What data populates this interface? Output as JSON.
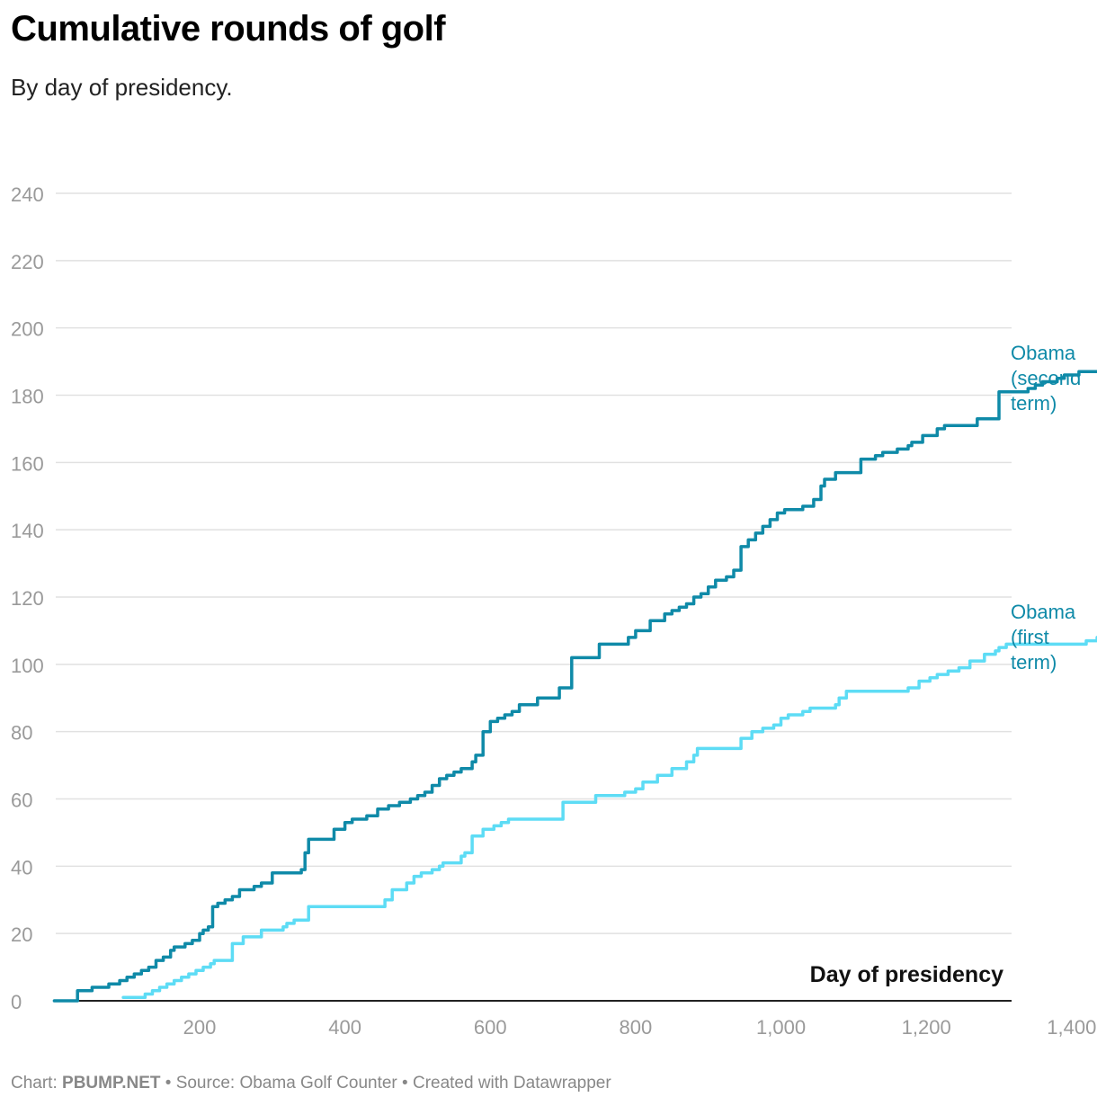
{
  "title": "Cumulative rounds of golf",
  "subtitle": "By day of presidency.",
  "footer": {
    "chart_prefix": "Chart: ",
    "chart_source": "PBUMP.NET",
    "source_text": " • Source: Obama Golf Counter • Created with Datawrapper"
  },
  "colors": {
    "second_term": "#0f8aa8",
    "first_term": "#5ddcf5",
    "grid": "#e1e1e1",
    "tick_label": "#9a9a9a",
    "axis": "#222222"
  },
  "chart_data": {
    "type": "line",
    "title": "Cumulative rounds of golf",
    "subtitle": "By day of presidency.",
    "xlabel": "Day of presidency",
    "ylabel": "",
    "xlim": [
      -20,
      1480
    ],
    "ylim": [
      0,
      240
    ],
    "x_ticks": [
      200,
      400,
      600,
      800,
      1000,
      1200,
      1400
    ],
    "x_tick_labels": [
      "200",
      "400",
      "600",
      "800",
      "1,000",
      "1,200",
      "1,400"
    ],
    "y_ticks": [
      0,
      20,
      40,
      60,
      80,
      100,
      120,
      140,
      160,
      180,
      200,
      220,
      240
    ],
    "y_tick_labels": [
      "0",
      "20",
      "40",
      "60",
      "80",
      "100",
      "120",
      "140",
      "160",
      "180",
      "200",
      "220",
      "240"
    ],
    "grid": true,
    "legend": "direct labels at right end of lines",
    "series": [
      {
        "name": "Obama (second term)",
        "label_lines": [
          "Obama",
          "(second",
          "term)"
        ],
        "color": "#0f8aa8",
        "x": [
          0,
          28,
          32,
          48,
          52,
          68,
          75,
          90,
          100,
          110,
          120,
          130,
          140,
          150,
          160,
          165,
          180,
          190,
          200,
          205,
          212,
          218,
          225,
          235,
          245,
          255,
          275,
          285,
          300,
          340,
          345,
          350,
          380,
          385,
          400,
          410,
          430,
          445,
          460,
          475,
          490,
          500,
          510,
          520,
          530,
          540,
          550,
          560,
          575,
          580,
          590,
          600,
          610,
          620,
          630,
          640,
          665,
          695,
          712,
          745,
          750,
          785,
          790,
          800,
          820,
          840,
          850,
          860,
          870,
          880,
          890,
          900,
          910,
          925,
          935,
          945,
          955,
          965,
          975,
          985,
          995,
          1005,
          1030,
          1045,
          1055,
          1060,
          1075,
          1110,
          1130,
          1140,
          1160,
          1175,
          1180,
          1195,
          1215,
          1225,
          1260,
          1270,
          1300,
          1305,
          1340,
          1350,
          1360,
          1380,
          1390,
          1410,
          1440,
          1460
        ],
        "y": [
          0,
          0,
          3,
          3,
          4,
          4,
          5,
          6,
          7,
          8,
          9,
          10,
          12,
          13,
          15,
          16,
          17,
          18,
          20,
          21,
          22,
          28,
          29,
          30,
          31,
          33,
          34,
          35,
          38,
          39,
          44,
          48,
          48,
          51,
          53,
          54,
          55,
          57,
          58,
          59,
          60,
          61,
          62,
          64,
          66,
          67,
          68,
          69,
          71,
          73,
          80,
          83,
          84,
          85,
          86,
          88,
          90,
          93,
          102,
          102,
          106,
          106,
          108,
          110,
          113,
          115,
          116,
          117,
          118,
          120,
          121,
          123,
          125,
          126,
          128,
          135,
          137,
          139,
          141,
          143,
          145,
          146,
          147,
          149,
          153,
          155,
          157,
          161,
          162,
          163,
          164,
          165,
          166,
          168,
          170,
          171,
          171,
          173,
          181,
          181,
          182,
          183,
          184,
          185,
          186,
          187,
          193,
          193
        ]
      },
      {
        "name": "Obama (first term)",
        "label_lines": [
          "Obama",
          "(first",
          "term)"
        ],
        "color": "#5ddcf5",
        "x": [
          95,
          118,
          125,
          135,
          145,
          155,
          165,
          175,
          185,
          195,
          205,
          215,
          220,
          235,
          245,
          260,
          285,
          315,
          320,
          330,
          345,
          350,
          440,
          455,
          465,
          485,
          495,
          505,
          520,
          530,
          535,
          560,
          565,
          575,
          580,
          590,
          605,
          615,
          625,
          645,
          700,
          710,
          745,
          785,
          800,
          810,
          830,
          850,
          870,
          880,
          885,
          940,
          945,
          960,
          975,
          990,
          1000,
          1010,
          1030,
          1040,
          1075,
          1080,
          1090,
          1175,
          1190,
          1205,
          1215,
          1230,
          1245,
          1260,
          1280,
          1295,
          1300,
          1310,
          1410,
          1420,
          1435,
          1450,
          1460
        ],
        "y": [
          1,
          1,
          2,
          3,
          4,
          5,
          6,
          7,
          8,
          9,
          10,
          11,
          12,
          12,
          17,
          19,
          21,
          22,
          23,
          24,
          24,
          28,
          28,
          30,
          33,
          35,
          37,
          38,
          39,
          40,
          41,
          43,
          44,
          49,
          49,
          51,
          52,
          53,
          54,
          54,
          59,
          59,
          61,
          62,
          63,
          65,
          67,
          69,
          71,
          73,
          75,
          75,
          78,
          80,
          81,
          82,
          84,
          85,
          86,
          87,
          88,
          90,
          92,
          93,
          95,
          96,
          97,
          98,
          99,
          101,
          103,
          104,
          105,
          106,
          106,
          107,
          108,
          110,
          116
        ]
      }
    ]
  }
}
